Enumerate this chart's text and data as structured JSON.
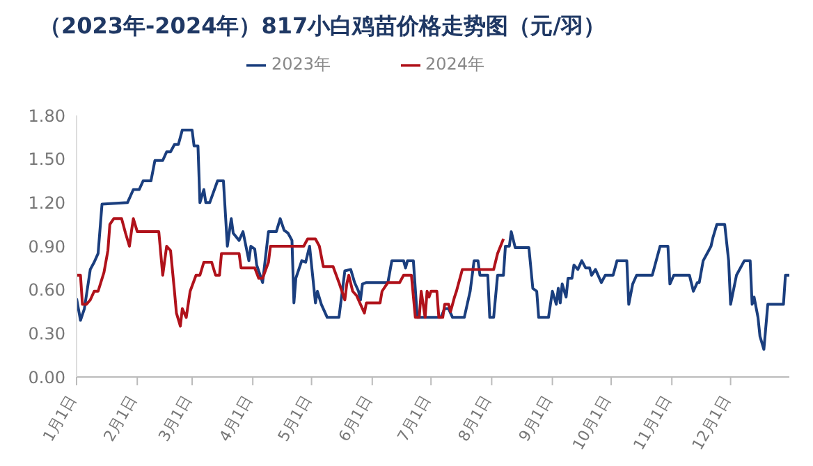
{
  "chart_data": {
    "type": "line",
    "title": "（2023年-2024年）817小白鸡苗价格走势图（元/羽）",
    "legend": "top",
    "marker": "none",
    "line_style": "solid",
    "xlim": [
      "--01-01",
      "--12-31"
    ],
    "xticks": [
      {
        "value": "--01-01",
        "label": "1月1日"
      },
      {
        "value": "--02-01",
        "label": "2月1日"
      },
      {
        "value": "--03-01",
        "label": "3月1日"
      },
      {
        "value": "--04-01",
        "label": "4月1日"
      },
      {
        "value": "--05-01",
        "label": "5月1日"
      },
      {
        "value": "--06-01",
        "label": "6月1日"
      },
      {
        "value": "--07-01",
        "label": "7月1日"
      },
      {
        "value": "--08-01",
        "label": "8月1日"
      },
      {
        "value": "--09-01",
        "label": "9月1日"
      },
      {
        "value": "--10-01",
        "label": "10月1日"
      },
      {
        "value": "--11-01",
        "label": "11月1日"
      },
      {
        "value": "--12-01",
        "label": "12月1日"
      }
    ],
    "ylim": [
      0,
      1.8
    ],
    "yticks": [
      {
        "value": 0,
        "label": "0.00"
      },
      {
        "value": 0.3,
        "label": "0.30"
      },
      {
        "value": 0.6,
        "label": "0.60"
      },
      {
        "value": 0.9,
        "label": "0.90"
      },
      {
        "value": 1.2,
        "label": "1.20"
      },
      {
        "value": 1.5,
        "label": "1.50"
      },
      {
        "value": 1.8,
        "label": "1.80"
      }
    ],
    "series": [
      {
        "name": "2023年",
        "color": "#1a3e7e",
        "x": [
          "--01-01",
          "--01-03",
          "--01-05",
          "--01-08",
          "--01-10",
          "--01-12",
          "--01-14",
          "--01-27",
          "--01-30",
          "--02-02",
          "--02-04",
          "--02-08",
          "--02-10",
          "--02-14",
          "--02-16",
          "--02-18",
          "--02-20",
          "--02-22",
          "--02-24",
          "--03-01",
          "--03-02",
          "--03-04",
          "--03-05",
          "--03-07",
          "--03-08",
          "--03-10",
          "--03-14",
          "--03-17",
          "--03-19",
          "--03-21",
          "--03-22",
          "--03-25",
          "--03-27",
          "--03-30",
          "--03-31",
          "--04-02",
          "--04-03",
          "--04-06",
          "--04-09",
          "--04-13",
          "--04-15",
          "--04-17",
          "--04-19",
          "--04-21",
          "--04-22",
          "--04-23",
          "--04-26",
          "--04-28",
          "--04-30",
          "--05-03",
          "--05-04",
          "--05-06",
          "--05-09",
          "--05-15",
          "--05-18",
          "--05-21",
          "--05-23",
          "--05-25",
          "--05-26",
          "--05-27",
          "--05-29",
          "--06-09",
          "--06-11",
          "--06-17",
          "--06-18",
          "--06-19",
          "--06-22",
          "--06-24",
          "--07-06",
          "--07-08",
          "--07-10",
          "--07-12",
          "--07-18",
          "--07-21",
          "--07-23",
          "--07-25",
          "--07-26",
          "--07-30",
          "--07-31",
          "--08-02",
          "--08-04",
          "--08-07",
          "--08-08",
          "--08-10",
          "--08-11",
          "--08-13",
          "--08-20",
          "--08-22",
          "--08-24",
          "--08-25",
          "--08-30",
          "--09-01",
          "--09-03",
          "--09-04",
          "--09-05",
          "--09-06",
          "--09-08",
          "--09-09",
          "--09-11",
          "--09-12",
          "--09-14",
          "--09-16",
          "--09-18",
          "--09-20",
          "--09-21",
          "--09-23",
          "--09-24",
          "--09-26",
          "--09-28",
          "--10-02",
          "--10-04",
          "--10-09",
          "--10-10",
          "--10-12",
          "--10-14",
          "--10-22",
          "--10-26",
          "--10-30",
          "--10-31",
          "--11-02",
          "--11-10",
          "--11-12",
          "--11-14",
          "--11-15",
          "--11-17",
          "--11-21",
          "--11-22",
          "--11-24",
          "--11-28",
          "--11-30",
          "--12-01",
          "--12-04",
          "--12-08",
          "--12-11",
          "--12-12",
          "--12-13",
          "--12-15",
          "--12-16",
          "--12-18",
          "--12-20",
          "--12-28",
          "--12-29",
          "--12-31"
        ],
        "values": [
          0.54,
          0.39,
          0.47,
          0.74,
          0.79,
          0.85,
          1.19,
          1.2,
          1.29,
          1.29,
          1.35,
          1.35,
          1.49,
          1.49,
          1.55,
          1.55,
          1.6,
          1.6,
          1.7,
          1.7,
          1.59,
          1.59,
          1.2,
          1.29,
          1.2,
          1.2,
          1.35,
          1.35,
          0.9,
          1.09,
          0.99,
          0.94,
          1.0,
          0.8,
          0.9,
          0.88,
          0.77,
          0.65,
          1.0,
          1.0,
          1.09,
          1.01,
          0.99,
          0.94,
          0.51,
          0.68,
          0.8,
          0.79,
          0.9,
          0.51,
          0.59,
          0.5,
          0.41,
          0.41,
          0.73,
          0.74,
          0.65,
          0.59,
          0.53,
          0.64,
          0.65,
          0.65,
          0.8,
          0.8,
          0.75,
          0.8,
          0.8,
          0.41,
          0.41,
          0.47,
          0.47,
          0.41,
          0.41,
          0.59,
          0.8,
          0.8,
          0.7,
          0.7,
          0.41,
          0.41,
          0.7,
          0.7,
          0.9,
          0.9,
          1.0,
          0.89,
          0.89,
          0.61,
          0.59,
          0.41,
          0.41,
          0.59,
          0.5,
          0.61,
          0.51,
          0.64,
          0.55,
          0.68,
          0.68,
          0.77,
          0.74,
          0.8,
          0.75,
          0.75,
          0.7,
          0.74,
          0.71,
          0.65,
          0.7,
          0.7,
          0.8,
          0.8,
          0.5,
          0.64,
          0.7,
          0.7,
          0.9,
          0.9,
          0.64,
          0.7,
          0.7,
          0.59,
          0.65,
          0.65,
          0.8,
          0.9,
          0.96,
          1.05,
          1.05,
          0.8,
          0.5,
          0.7,
          0.8,
          0.8,
          0.5,
          0.55,
          0.41,
          0.28,
          0.19,
          0.5,
          0.5,
          0.7,
          0.7
        ]
      },
      {
        "name": "2024年",
        "color": "#b0121b",
        "x": [
          "--01-01",
          "--01-03",
          "--01-04",
          "--01-06",
          "--01-08",
          "--01-10",
          "--01-12",
          "--01-15",
          "--01-17",
          "--01-18",
          "--01-20",
          "--01-24",
          "--01-26",
          "--01-28",
          "--01-29",
          "--01-30",
          "--02-01",
          "--02-12",
          "--02-14",
          "--02-16",
          "--02-18",
          "--02-20",
          "--02-21",
          "--02-23",
          "--02-24",
          "--02-26",
          "--02-28",
          "--03-03",
          "--03-05",
          "--03-07",
          "--03-11",
          "--03-13",
          "--03-15",
          "--03-16",
          "--03-25",
          "--03-26",
          "--04-02",
          "--04-04",
          "--04-06",
          "--04-09",
          "--04-10",
          "--04-27",
          "--04-29",
          "--05-03",
          "--05-05",
          "--05-07",
          "--05-12",
          "--05-15",
          "--05-18",
          "--05-19",
          "--05-20",
          "--05-22",
          "--05-24",
          "--05-26",
          "--05-28",
          "--05-29",
          "--06-05",
          "--06-06",
          "--06-09",
          "--06-15",
          "--06-17",
          "--06-21",
          "--06-23",
          "--06-25",
          "--06-26",
          "--06-28",
          "--06-29",
          "--06-30",
          "--07-01",
          "--07-04",
          "--07-05",
          "--07-07",
          "--07-08",
          "--07-10",
          "--07-11",
          "--07-13",
          "--07-14",
          "--07-17",
          "--08-02",
          "--08-04",
          "--08-07"
        ],
        "values": [
          0.7,
          0.7,
          0.5,
          0.5,
          0.53,
          0.59,
          0.59,
          0.72,
          0.87,
          1.05,
          1.09,
          1.09,
          0.99,
          0.9,
          1.0,
          1.09,
          1.0,
          1.0,
          0.7,
          0.9,
          0.87,
          0.59,
          0.44,
          0.35,
          0.47,
          0.41,
          0.59,
          0.7,
          0.7,
          0.79,
          0.79,
          0.7,
          0.7,
          0.85,
          0.85,
          0.75,
          0.75,
          0.68,
          0.68,
          0.79,
          0.9,
          0.9,
          0.95,
          0.95,
          0.9,
          0.76,
          0.76,
          0.65,
          0.53,
          0.64,
          0.7,
          0.59,
          0.56,
          0.5,
          0.44,
          0.51,
          0.51,
          0.59,
          0.65,
          0.65,
          0.7,
          0.7,
          0.41,
          0.41,
          0.59,
          0.41,
          0.59,
          0.55,
          0.59,
          0.59,
          0.41,
          0.41,
          0.5,
          0.5,
          0.45,
          0.55,
          0.59,
          0.74,
          0.74,
          0.85,
          0.95
        ]
      }
    ]
  }
}
